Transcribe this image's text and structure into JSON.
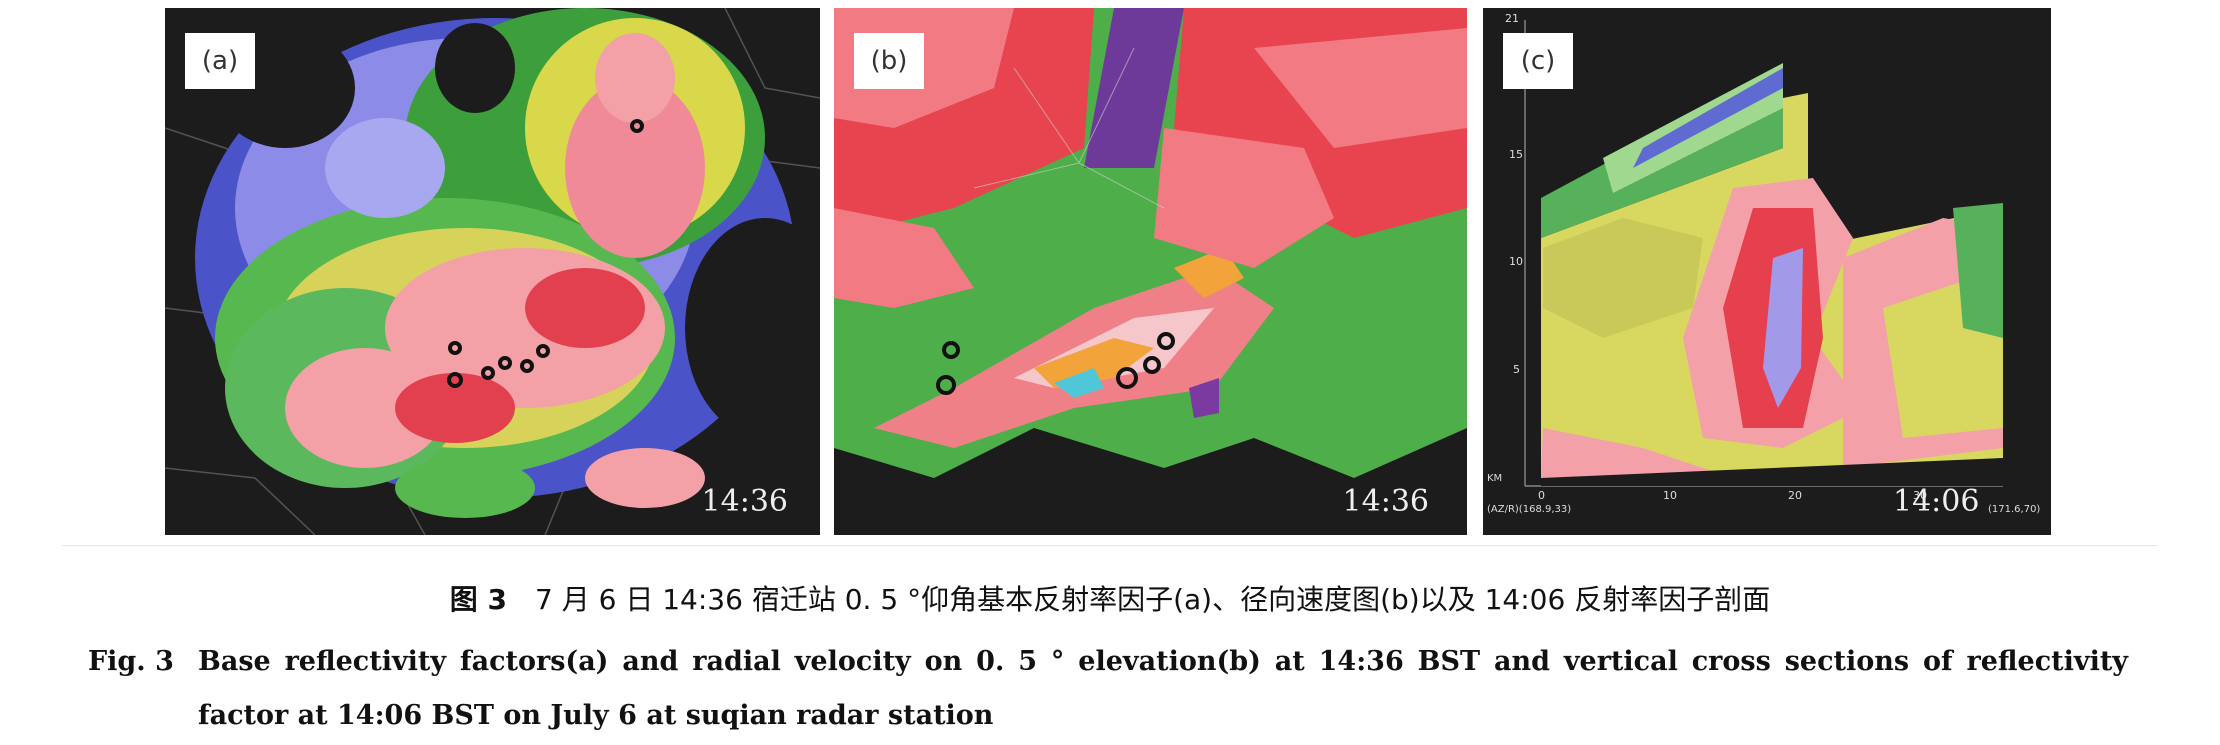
{
  "figure": {
    "panels": [
      {
        "id": "a",
        "label": "(a)",
        "time": "14:36"
      },
      {
        "id": "b",
        "label": "(b)",
        "time": "14:36"
      },
      {
        "id": "c",
        "label": "(c)",
        "time": "14:06",
        "y_ticks": [
          "21",
          "15",
          "10",
          "5"
        ],
        "x_ticks": [
          "0",
          "10",
          "20",
          "30"
        ],
        "x_unit": "KM",
        "start_coord": "(AZ/R)(168.9,33)",
        "end_coord": "(171.6,70)"
      }
    ]
  },
  "caption": {
    "cn_lead": "图 3",
    "cn_text": "7 月 6 日 14:36 宿迁站 0. 5 °仰角基本反射率因子(a)、径向速度图(b)以及 14:06 反射率因子剖面",
    "en_lead": "Fig. 3",
    "en_text": "Base reflectivity factors(a) and radial velocity on 0. 5 ° elevation(b) at 14:36 BST and vertical cross sections of reflectivity factor at 14:06 BST on July 6 at suqian radar station"
  }
}
